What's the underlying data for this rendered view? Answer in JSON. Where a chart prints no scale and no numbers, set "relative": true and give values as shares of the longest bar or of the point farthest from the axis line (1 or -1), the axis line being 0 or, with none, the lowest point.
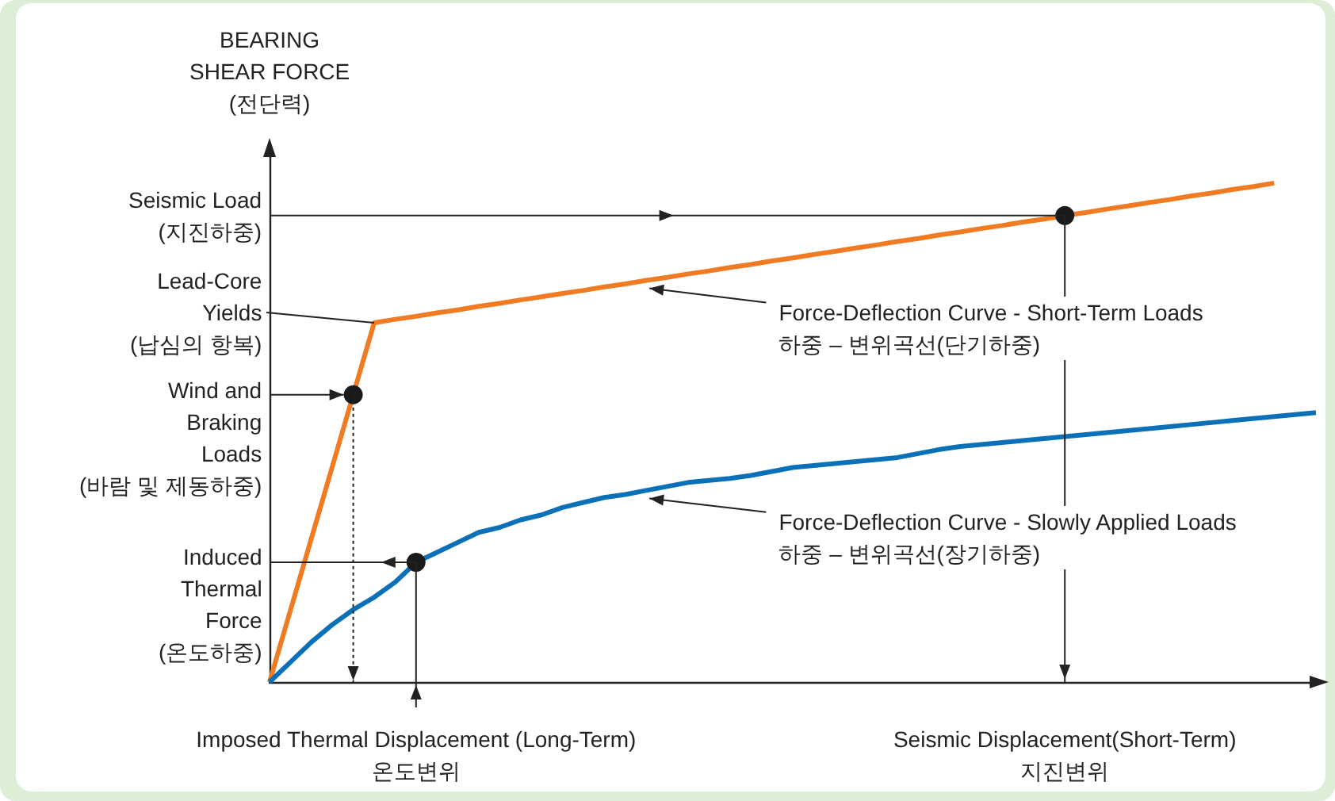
{
  "chart_data": {
    "type": "line",
    "ylabel": "BEARING\nSHEAR FORCE\n(전단력)",
    "relative": true,
    "marker": "none",
    "categories": [
      null,
      null,
      null,
      null,
      null,
      null,
      null,
      "Imposed Thermal Displacement (Long-Term)\n온도변위",
      null,
      null,
      null,
      null,
      null,
      null,
      null,
      null,
      null,
      null,
      null,
      null,
      null,
      null,
      null,
      null,
      null,
      null,
      null,
      null,
      null,
      null,
      null,
      null,
      null,
      null,
      null,
      null,
      null,
      null,
      "Seismic Displacement(Short-Term)\n지진변위",
      null,
      null,
      null,
      null,
      null,
      null,
      null,
      null,
      null,
      null,
      null,
      null
    ],
    "series": [
      {
        "name": "Force-Deflection Curve - Short-Term Loads\n하중 – 변위곡선(단기하중)",
        "color": "#f07b22",
        "values": [
          0,
          0.144,
          0.288,
          0.432,
          0.576,
          0.72,
          0.727,
          0.733,
          0.74,
          0.746,
          0.753,
          0.759,
          0.766,
          0.772,
          0.779,
          0.785,
          0.792,
          0.798,
          0.805,
          0.811,
          0.818,
          0.824,
          0.831,
          0.837,
          0.844,
          0.85,
          0.857,
          0.863,
          0.87,
          0.876,
          0.883,
          0.889,
          0.896,
          0.902,
          0.909,
          0.915,
          0.922,
          0.928,
          0.935,
          0.941,
          0.948,
          0.954,
          0.961,
          0.967,
          0.974,
          0.98,
          0.987,
          0.993,
          1.0,
          null,
          null
        ]
      },
      {
        "name": "Force-Deflection Curve - Slowly Applied Loads\n하중 – 변위곡선(장기하중)",
        "color": "#0a70b8",
        "values": [
          0,
          0.04,
          0.08,
          0.115,
          0.145,
          0.17,
          0.2,
          0.24,
          0.26,
          0.28,
          0.3,
          0.31,
          0.325,
          0.335,
          0.35,
          0.36,
          0.37,
          0.376,
          0.384,
          0.392,
          0.4,
          0.404,
          0.408,
          0.414,
          0.422,
          0.43,
          0.434,
          0.438,
          0.442,
          0.446,
          0.45,
          0.458,
          0.466,
          0.472,
          0.476,
          0.48,
          0.484,
          0.488,
          0.492,
          0.496,
          0.5,
          0.504,
          0.508,
          0.512,
          0.516,
          0.52,
          0.524,
          0.528,
          0.532,
          0.536,
          0.54
        ]
      },
      {
        "type": "scatter",
        "marker": "circle",
        "color": "#1a1a1a",
        "values": [
          null,
          null,
          null,
          null,
          0.576,
          null,
          null,
          0.24,
          null,
          null,
          null,
          null,
          null,
          null,
          null,
          null,
          null,
          null,
          null,
          null,
          null,
          null,
          null,
          null,
          null,
          null,
          null,
          null,
          null,
          null,
          null,
          null,
          null,
          null,
          null,
          null,
          null,
          null,
          0.935,
          null,
          null,
          null,
          null,
          null,
          null,
          null,
          null,
          null,
          null,
          null,
          null
        ]
      }
    ],
    "annotations": [
      "Seismic Load\n(지진하중)",
      "Lead-Core\nYields\n(납심의 항복)",
      "Wind and\nBraking\nLoads\n(바람 및 제동하중)",
      "Induced\nThermal\nForce\n(온도하중)"
    ]
  }
}
